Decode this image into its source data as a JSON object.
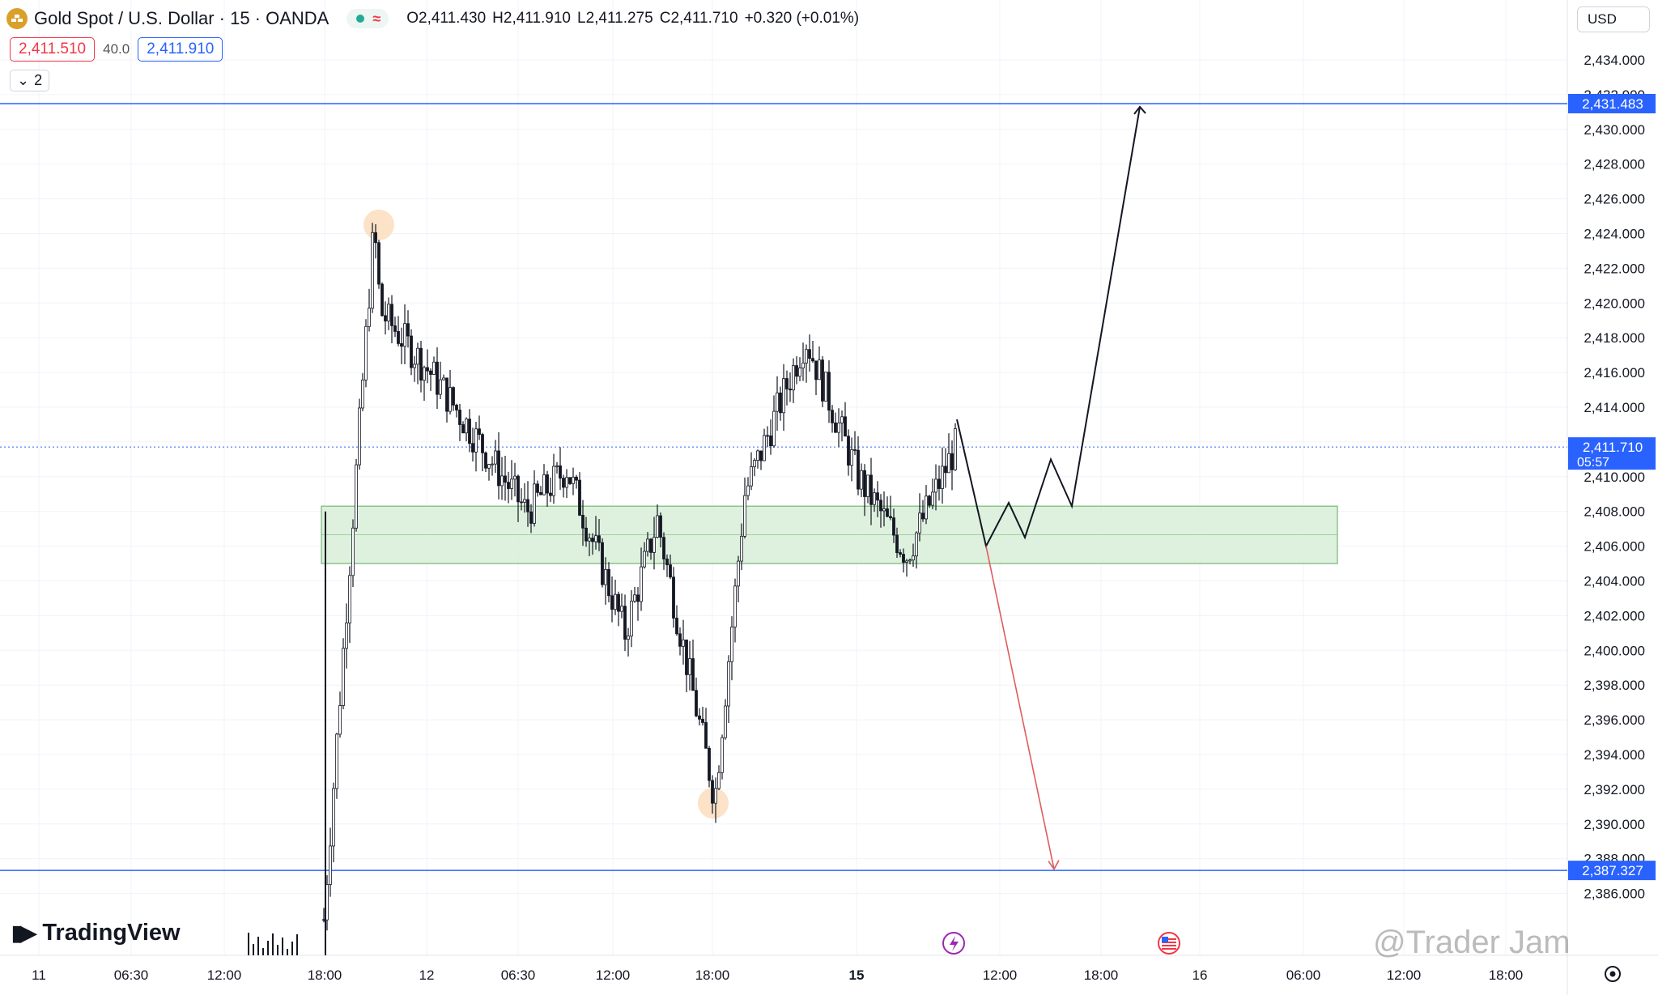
{
  "header": {
    "title": "Gold Spot / U.S. Dollar · 15 · OANDA",
    "ohlc": [
      {
        "k": "O",
        "v": "2,411.430"
      },
      {
        "k": "H",
        "v": "2,411.910"
      },
      {
        "k": "L",
        "v": "2,411.275"
      },
      {
        "k": "C",
        "v": "2,411.710"
      },
      {
        "k": "",
        "v": "+0.320 (+0.01%)"
      }
    ],
    "bid": "2,411.510",
    "spread": "40.0",
    "ask": "2,411.910",
    "indicators_collapsed_count": "2",
    "currency": "USD"
  },
  "brand": {
    "logo_text": "TradingView"
  },
  "watermark": "@Trader Jam",
  "chart_data": {
    "type": "candlestick",
    "instrument": "Gold Spot / U.S. Dollar",
    "timeframe": "15",
    "y_ticks": [
      "2,434.000",
      "2,432.000",
      "2,430.000",
      "2,428.000",
      "2,426.000",
      "2,424.000",
      "2,422.000",
      "2,420.000",
      "2,418.000",
      "2,416.000",
      "2,414.000",
      "2,412.000",
      "2,410.000",
      "2,408.000",
      "2,406.000",
      "2,404.000",
      "2,402.000",
      "2,400.000",
      "2,398.000",
      "2,396.000",
      "2,394.000",
      "2,392.000",
      "2,390.000",
      "2,388.000",
      "2,386.000"
    ],
    "x_ticks": [
      "11",
      "06:30",
      "12:00",
      "18:00",
      "12",
      "06:30",
      "12:00",
      "18:00",
      "15",
      "12:00",
      "18:00",
      "16",
      "06:00",
      "12:00",
      "18:00"
    ],
    "bold_x_ticks": [
      "15"
    ],
    "price_labels": {
      "target": "2,431.483",
      "current": "2,411.710",
      "countdown": "05:57",
      "stop": "2,387.327"
    },
    "horizontal_lines": [
      2431.483,
      2387.327
    ],
    "current_price": 2411.71,
    "zone": {
      "low": 2405.0,
      "high": 2408.3
    },
    "highlight_points": [
      2424.5,
      2391.2
    ],
    "colors": {
      "price_line": "#2962ff",
      "zone_fill": "#d8efd8",
      "zone_border": "#8bc48a",
      "down_arrow": "#e05c5c",
      "highlight": "#fce3c7",
      "candle": "#131722"
    },
    "anchors": [
      {
        "label": "start",
        "price": 2384.5
      },
      {
        "label": "spike_high",
        "price": 2424.5
      },
      {
        "label": "early_high",
        "price": 2419.5
      },
      {
        "label": "mid_range",
        "price": 2415.5
      },
      {
        "label": "drop_1",
        "price": 2408.0
      },
      {
        "label": "recover_1",
        "price": 2410.5
      },
      {
        "label": "low_1",
        "price": 2401.0
      },
      {
        "label": "bounce",
        "price": 2407.5
      },
      {
        "label": "low_2",
        "price": 2400.0
      },
      {
        "label": "spike_low",
        "price": 2391.5
      },
      {
        "label": "recover_2",
        "price": 2409.0
      },
      {
        "label": "high_2",
        "price": 2418.0
      },
      {
        "label": "pullback",
        "price": 2410.0
      },
      {
        "label": "low_3",
        "price": 2405.5
      },
      {
        "label": "last",
        "price": 2411.7
      }
    ]
  }
}
